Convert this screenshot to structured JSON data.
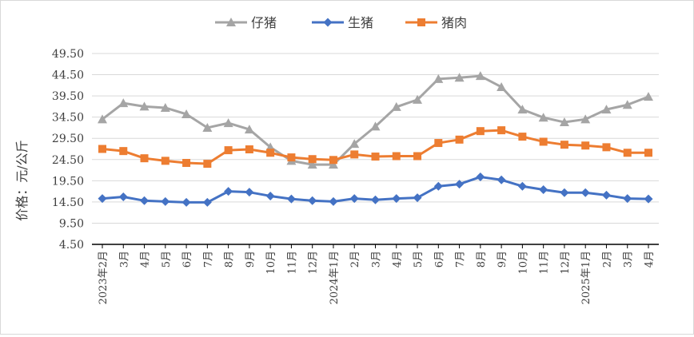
{
  "chart_data": {
    "type": "line",
    "title": "",
    "ylabel": "价格：元/公斤",
    "xlabel": "",
    "ylim": [
      4.5,
      49.5
    ],
    "yticks": [
      "4.50",
      "9.50",
      "14.50",
      "19.50",
      "24.50",
      "29.50",
      "34.50",
      "39.50",
      "44.50",
      "49.50"
    ],
    "grid": true,
    "legend_position": "top",
    "categories": [
      "2023年2月",
      "3月",
      "4月",
      "5月",
      "6月",
      "7月",
      "8月",
      "9月",
      "10月",
      "11月",
      "12月",
      "2024年1月",
      "2月",
      "3月",
      "4月",
      "5月",
      "6月",
      "7月",
      "8月",
      "9月",
      "10月",
      "11月",
      "12月",
      "2025年1月",
      "2月",
      "3月",
      "4月"
    ],
    "series": [
      {
        "name": "仔猪",
        "color": "#a5a5a5",
        "marker": "triangle",
        "values": [
          34.0,
          37.8,
          37.0,
          36.7,
          35.2,
          32.0,
          33.1,
          31.6,
          27.4,
          24.2,
          23.3,
          23.3,
          28.2,
          32.3,
          36.9,
          38.6,
          43.5,
          43.8,
          44.2,
          41.6,
          36.3,
          34.4,
          33.3,
          34.0,
          36.3,
          37.4,
          39.3
        ]
      },
      {
        "name": "生猪",
        "color": "#4472c4",
        "marker": "diamond",
        "values": [
          15.3,
          15.7,
          14.8,
          14.6,
          14.4,
          14.4,
          17.0,
          16.8,
          15.9,
          15.2,
          14.8,
          14.6,
          15.3,
          15.0,
          15.3,
          15.5,
          18.2,
          18.7,
          20.4,
          19.7,
          18.2,
          17.4,
          16.7,
          16.7,
          16.1,
          15.3,
          15.2
        ]
      },
      {
        "name": "猪肉",
        "color": "#ed7d31",
        "marker": "square",
        "values": [
          27.0,
          26.5,
          24.8,
          24.2,
          23.7,
          23.5,
          26.7,
          26.9,
          26.1,
          25.0,
          24.6,
          24.4,
          25.7,
          25.2,
          25.3,
          25.3,
          28.4,
          29.2,
          31.2,
          31.4,
          29.9,
          28.7,
          28.0,
          27.8,
          27.4,
          26.1,
          26.1
        ]
      }
    ]
  }
}
